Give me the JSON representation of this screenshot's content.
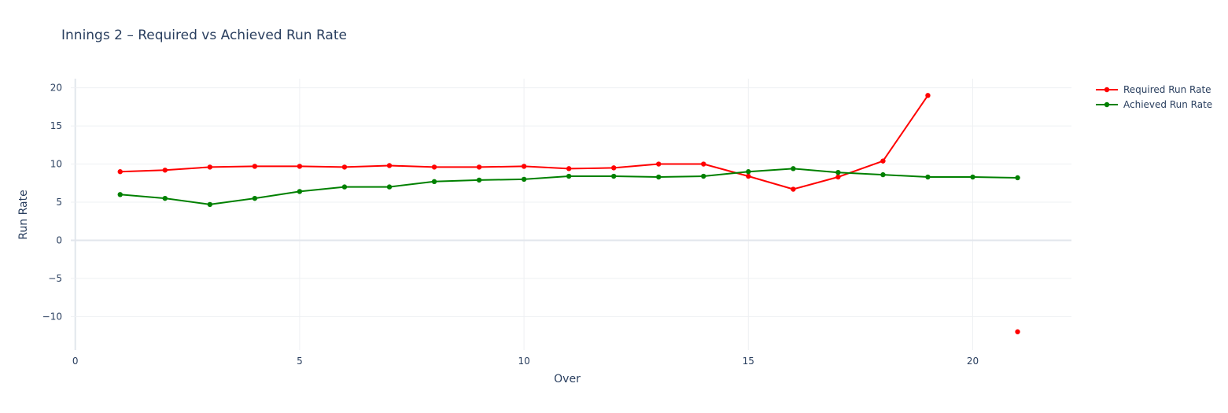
{
  "chart_data": {
    "type": "line",
    "title": "Innings 2 – Required vs Achieved Run Rate",
    "xlabel": "Over",
    "ylabel": "Run Rate",
    "xlim": [
      -0.1,
      22.2
    ],
    "ylim": [
      -14.4,
      21.2
    ],
    "xticks": [
      0,
      5,
      10,
      15,
      20
    ],
    "yticks": [
      -10,
      -5,
      0,
      5,
      10,
      15,
      20
    ],
    "ytick_labels": [
      "−10",
      "−5",
      "0",
      "5",
      "10",
      "15",
      "20"
    ],
    "grid": true,
    "legend_position": "top-right",
    "series": [
      {
        "name": "Required Run Rate",
        "color": "#ff0000",
        "x": [
          1,
          2,
          3,
          4,
          5,
          6,
          7,
          8,
          9,
          10,
          11,
          12,
          13,
          14,
          15,
          16,
          17,
          18,
          19,
          21
        ],
        "y": [
          9.0,
          9.2,
          9.6,
          9.7,
          9.7,
          9.6,
          9.8,
          9.6,
          9.6,
          9.7,
          9.4,
          9.5,
          10.0,
          10.0,
          8.4,
          6.7,
          8.3,
          10.4,
          19.0,
          -12.0
        ],
        "break_before_index": 19
      },
      {
        "name": "Achieved Run Rate",
        "color": "#008000",
        "x": [
          1,
          2,
          3,
          4,
          5,
          6,
          7,
          8,
          9,
          10,
          11,
          12,
          13,
          14,
          15,
          16,
          17,
          18,
          19,
          20,
          21
        ],
        "y": [
          6.0,
          5.5,
          4.7,
          5.5,
          6.4,
          7.0,
          7.0,
          7.7,
          7.9,
          8.0,
          8.4,
          8.4,
          8.3,
          8.4,
          9.0,
          9.4,
          8.9,
          8.6,
          8.3,
          8.3,
          8.2
        ]
      }
    ]
  }
}
